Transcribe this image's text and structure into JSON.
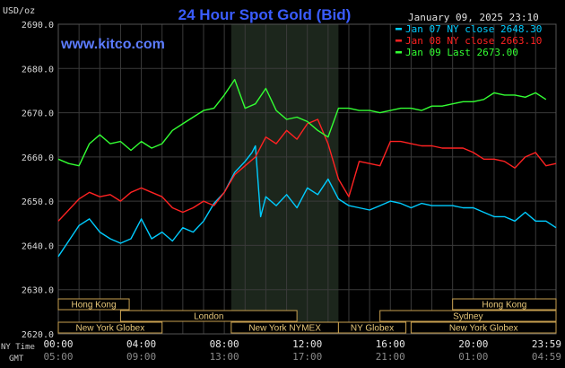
{
  "header": {
    "unit": "USD/oz",
    "title": "24 Hour Spot Gold (Bid)",
    "site": "www.kitco.com",
    "timestamp": "January 09, 2025 23:10"
  },
  "legend": [
    {
      "label": "Jan 07 NY close 2648.30",
      "color": "#00ccff"
    },
    {
      "label": "Jan 08 NY close 2663.10",
      "color": "#ff2222"
    },
    {
      "label": "Jan 09 Last 2673.00",
      "color": "#33ff33"
    }
  ],
  "sessions": [
    {
      "label": "Hong Kong",
      "start": "00:00",
      "end": "03:25",
      "row": 0
    },
    {
      "label": "Hong Kong",
      "start": "19:00",
      "end": "23:59",
      "row": 0
    },
    {
      "label": "London",
      "start": "03:00",
      "end": "11:30",
      "row": 1
    },
    {
      "label": "Sydney",
      "start": "15:30",
      "end": "23:59",
      "row": 1
    },
    {
      "label": "New York Globex",
      "start": "00:00",
      "end": "05:00",
      "row": 2
    },
    {
      "label": "New York NYMEX",
      "start": "08:20",
      "end": "13:30",
      "row": 2
    },
    {
      "label": "NY Globex",
      "start": "13:30",
      "end": "16:45",
      "row": 2
    },
    {
      "label": "New York Globex",
      "start": "17:00",
      "end": "23:59",
      "row": 2
    }
  ],
  "time_labels": {
    "ny_caption": "NY Time",
    "gmt_caption": "GMT",
    "ny": [
      "00:00",
      "04:00",
      "08:00",
      "12:00",
      "16:00",
      "20:00",
      "23:59"
    ],
    "gmt": [
      "05:00",
      "09:00",
      "13:00",
      "17:00",
      "21:00",
      "01:00",
      "04:59"
    ]
  },
  "chart_data": {
    "type": "line",
    "title": "24 Hour Spot Gold (Bid)",
    "ylabel": "USD/oz",
    "xlim": [
      "00:00",
      "23:59"
    ],
    "ylim": [
      2620,
      2690
    ],
    "yticks": [
      "2620.0",
      "2630.0",
      "2640.0",
      "2650.0",
      "2660.0",
      "2670.0",
      "2680.0",
      "2690.0"
    ],
    "highlight_region": [
      "08:20",
      "13:30"
    ],
    "grid": true,
    "legend_position": "top-right",
    "series": [
      {
        "name": "Jan 07 NY close 2648.30",
        "color": "#00ccff",
        "x": [
          "00:00",
          "00:30",
          "01:00",
          "01:30",
          "02:00",
          "02:30",
          "03:00",
          "03:30",
          "04:00",
          "04:30",
          "05:00",
          "05:30",
          "06:00",
          "06:30",
          "07:00",
          "07:30",
          "08:00",
          "08:30",
          "09:00",
          "09:20",
          "09:30",
          "09:45",
          "10:00",
          "10:30",
          "11:00",
          "11:30",
          "12:00",
          "12:30",
          "13:00",
          "13:30",
          "14:00",
          "14:30",
          "15:00",
          "15:30",
          "16:00",
          "16:30",
          "17:00",
          "17:30",
          "18:00",
          "18:30",
          "19:00",
          "19:30",
          "20:00",
          "20:30",
          "21:00",
          "21:30",
          "22:00",
          "22:30",
          "23:00",
          "23:30",
          "23:59"
        ],
        "values": [
          2637.5,
          2641.0,
          2644.5,
          2646.0,
          2643.0,
          2641.5,
          2640.5,
          2641.5,
          2646.0,
          2641.5,
          2643.0,
          2641.0,
          2644.0,
          2643.0,
          2645.5,
          2649.5,
          2652.0,
          2656.5,
          2659.0,
          2661.0,
          2662.5,
          2646.5,
          2651.0,
          2649.0,
          2651.5,
          2648.5,
          2653.0,
          2651.5,
          2655.0,
          2650.5,
          2649.0,
          2648.5,
          2648.0,
          2649.0,
          2650.0,
          2649.5,
          2648.5,
          2649.5,
          2649.0,
          2649.0,
          2649.0,
          2648.5,
          2648.5,
          2647.5,
          2646.5,
          2646.5,
          2645.5,
          2647.5,
          2645.5,
          2645.5,
          2644.0
        ]
      },
      {
        "name": "Jan 08 NY close 2663.10",
        "color": "#ff2222",
        "x": [
          "00:00",
          "00:30",
          "01:00",
          "01:30",
          "02:00",
          "02:30",
          "03:00",
          "03:30",
          "04:00",
          "04:30",
          "05:00",
          "05:30",
          "06:00",
          "06:30",
          "07:00",
          "07:30",
          "08:00",
          "08:30",
          "09:00",
          "09:30",
          "10:00",
          "10:30",
          "11:00",
          "11:30",
          "12:00",
          "12:30",
          "13:00",
          "13:30",
          "14:00",
          "14:30",
          "15:00",
          "15:30",
          "16:00",
          "16:30",
          "17:00",
          "17:30",
          "18:00",
          "18:30",
          "19:00",
          "19:30",
          "20:00",
          "20:30",
          "21:00",
          "21:30",
          "22:00",
          "22:30",
          "23:00",
          "23:30",
          "23:59"
        ],
        "values": [
          2645.5,
          2648.0,
          2650.5,
          2652.0,
          2651.0,
          2651.5,
          2650.0,
          2652.0,
          2653.0,
          2652.0,
          2651.0,
          2648.5,
          2647.5,
          2648.5,
          2650.0,
          2649.0,
          2652.0,
          2656.0,
          2658.0,
          2660.0,
          2664.5,
          2663.0,
          2666.0,
          2664.0,
          2667.5,
          2668.5,
          2663.0,
          2655.0,
          2651.0,
          2659.0,
          2658.5,
          2658.0,
          2663.5,
          2663.5,
          2663.0,
          2662.5,
          2662.5,
          2662.0,
          2662.0,
          2662.0,
          2661.0,
          2659.5,
          2659.5,
          2659.0,
          2657.5,
          2660.0,
          2661.0,
          2658.0,
          2658.5
        ]
      },
      {
        "name": "Jan 09 Last 2673.00",
        "color": "#33ff33",
        "x": [
          "00:00",
          "00:30",
          "01:00",
          "01:30",
          "02:00",
          "02:30",
          "03:00",
          "03:30",
          "04:00",
          "04:30",
          "05:00",
          "05:30",
          "06:00",
          "06:30",
          "07:00",
          "07:30",
          "08:00",
          "08:30",
          "09:00",
          "09:30",
          "10:00",
          "10:30",
          "11:00",
          "11:30",
          "12:00",
          "12:30",
          "13:00",
          "13:30",
          "14:00",
          "14:30",
          "15:00",
          "15:30",
          "16:00",
          "16:30",
          "17:00",
          "17:30",
          "18:00",
          "18:30",
          "19:00",
          "19:30",
          "20:00",
          "20:30",
          "21:00",
          "21:30",
          "22:00",
          "22:30",
          "23:00",
          "23:30"
        ],
        "values": [
          2659.5,
          2658.5,
          2658.0,
          2663.0,
          2665.0,
          2663.0,
          2663.5,
          2661.5,
          2663.5,
          2662.0,
          2663.0,
          2666.0,
          2667.5,
          2669.0,
          2670.5,
          2671.0,
          2674.0,
          2677.5,
          2671.0,
          2672.0,
          2675.5,
          2670.5,
          2668.5,
          2669.0,
          2668.0,
          2666.0,
          2664.5,
          2671.0,
          2671.0,
          2670.5,
          2670.5,
          2670.0,
          2670.5,
          2671.0,
          2671.0,
          2670.5,
          2671.5,
          2671.5,
          2672.0,
          2672.5,
          2672.5,
          2673.0,
          2674.5,
          2674.0,
          2674.0,
          2673.5,
          2674.5,
          2673.0
        ]
      }
    ]
  }
}
